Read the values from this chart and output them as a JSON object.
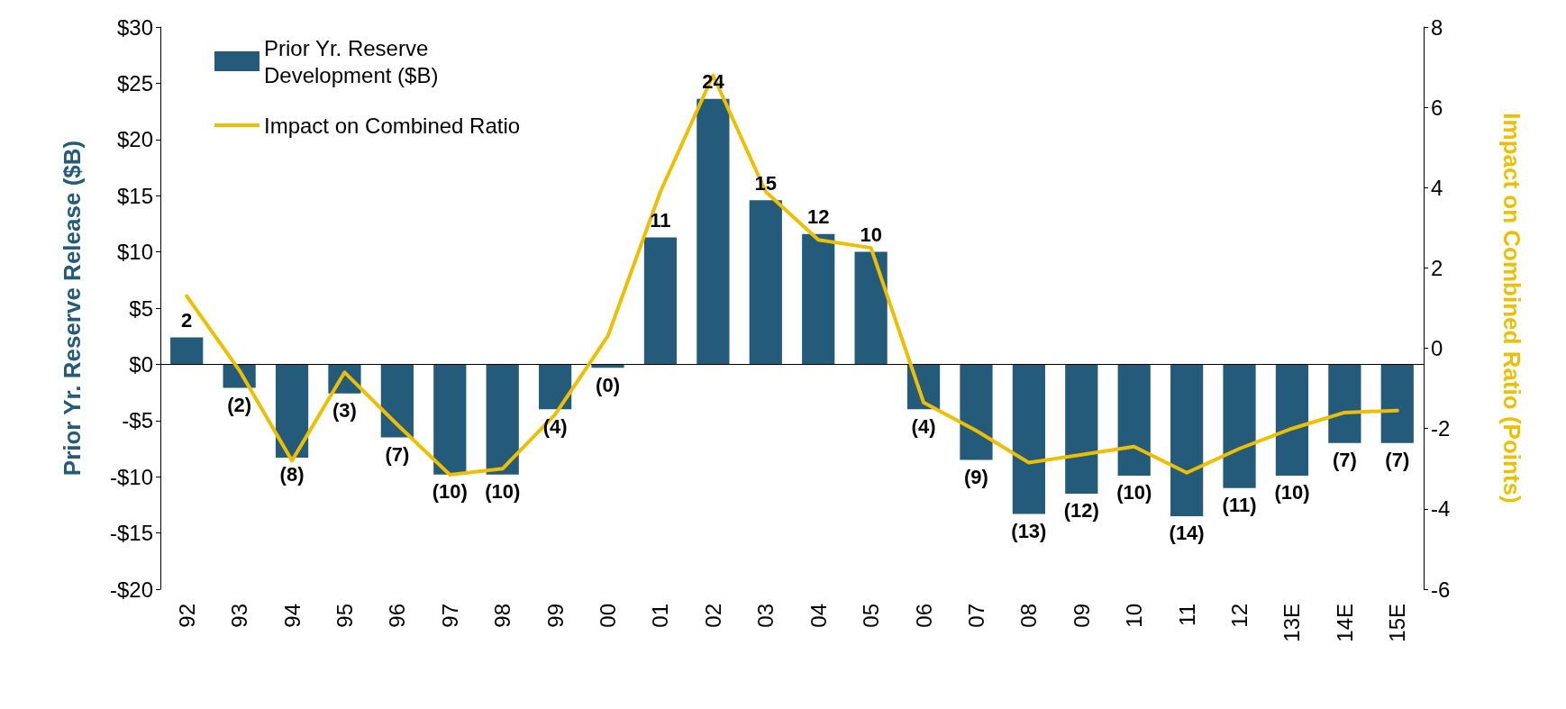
{
  "chart_data": {
    "type": "bar",
    "ylabel": "Prior Yr. Reserve Release ($B)",
    "y2label": "Impact on Combined Ratio (Points)",
    "categories": [
      "92",
      "93",
      "94",
      "95",
      "96",
      "97",
      "98",
      "99",
      "00",
      "01",
      "02",
      "03",
      "04",
      "05",
      "06",
      "07",
      "08",
      "09",
      "10",
      "11",
      "12",
      "13E",
      "14E",
      "15E"
    ],
    "series": [
      {
        "name": "Prior Yr. Reserve Development ($B)",
        "color": "#245b7b",
        "values": [
          2.4,
          -2.1,
          -8.3,
          -2.6,
          -6.5,
          -9.8,
          -9.8,
          -4.0,
          -0.3,
          11.3,
          23.6,
          14.6,
          11.6,
          10.0,
          -4.0,
          -8.5,
          -13.3,
          -11.5,
          -9.9,
          -13.5,
          -11.0,
          -9.9,
          -7.0,
          -7.0
        ],
        "value_labels": [
          "2",
          "(2)",
          "(8)",
          "(3)",
          "(7)",
          "(10)",
          "(10)",
          "(4)",
          "(0)",
          "11",
          "24",
          "15",
          "12",
          "10",
          "(4)",
          "(9)",
          "(13)",
          "(12)",
          "(10)",
          "(14)",
          "(11)",
          "(10)",
          "(7)",
          "(7)"
        ]
      },
      {
        "name": "Impact on Combined Ratio",
        "type": "line",
        "axis": "y2",
        "color": "#eebf00",
        "values": [
          1.3,
          -0.55,
          -2.8,
          -0.6,
          -1.9,
          -3.15,
          -3.0,
          -1.65,
          0.3,
          3.9,
          6.8,
          3.9,
          2.7,
          2.5,
          -1.35,
          -2.05,
          -2.85,
          -2.65,
          -2.45,
          -3.1,
          -2.5,
          -2.0,
          -1.6,
          -1.55
        ]
      }
    ],
    "ylim": [
      -20,
      30
    ],
    "yticks": [
      {
        "value": -20,
        "label": "-$20"
      },
      {
        "value": -15,
        "label": "-$15"
      },
      {
        "value": -10,
        "label": "-$10"
      },
      {
        "value": -5,
        "label": "-$5"
      },
      {
        "value": 0,
        "label": "$0"
      },
      {
        "value": 5,
        "label": "$5"
      },
      {
        "value": 10,
        "label": "$10"
      },
      {
        "value": 15,
        "label": "$15"
      },
      {
        "value": 20,
        "label": "$20"
      },
      {
        "value": 25,
        "label": "$25"
      },
      {
        "value": 30,
        "label": "$30"
      }
    ],
    "y2lim": [
      -6,
      8
    ],
    "y2ticks": [
      -6,
      -4,
      -2,
      0,
      2,
      4,
      6,
      8
    ],
    "ref_lines": [
      {
        "axis": "y",
        "value": 0,
        "color": "#000000"
      }
    ],
    "legend": "top left",
    "grid": false,
    "marker": "none",
    "line_style": "solid"
  }
}
